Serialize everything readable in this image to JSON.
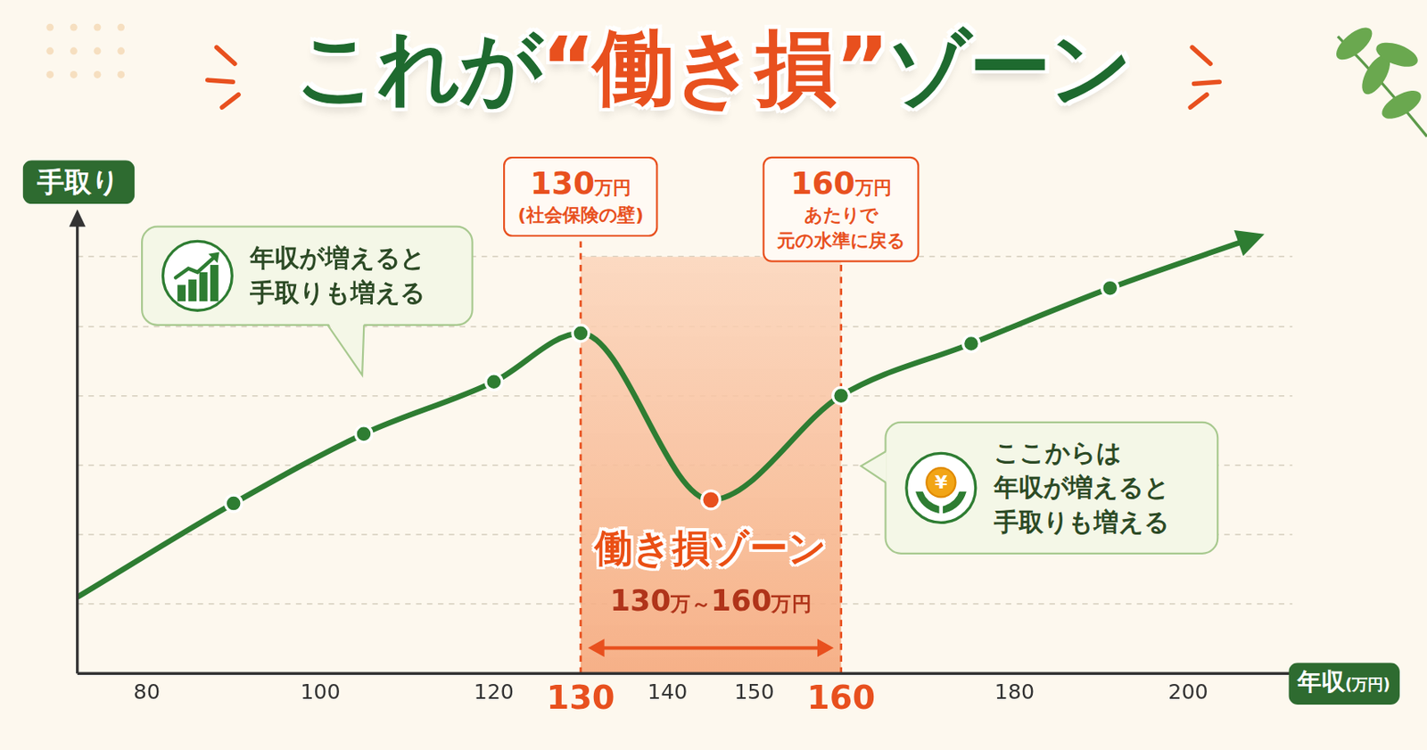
{
  "chart_data": {
    "type": "line",
    "title": "これが“働き損”ゾーン",
    "title_emphasis": "“働き損”",
    "ylabel": "手取り",
    "xlabel": "年収",
    "xunit": "(万円)",
    "x": [
      72,
      90,
      105,
      120,
      130,
      145,
      160,
      175,
      191,
      207
    ],
    "values": [
      11,
      24.5,
      34.5,
      42,
      49,
      25,
      40,
      47.5,
      55.5,
      62.5
    ],
    "color": "#2e7d32",
    "marker": "circle",
    "xlim": [
      72,
      212
    ],
    "xticks": [
      80,
      100,
      120,
      130,
      140,
      150,
      160,
      180,
      200
    ],
    "ylim": [
      0,
      65
    ],
    "yticks": [
      10,
      20,
      30,
      40,
      50,
      60
    ],
    "grid": "y",
    "tick_labels": "x",
    "zone": {
      "from": 130,
      "to": 160,
      "label": "働き損ゾーン",
      "range_label": "130万～160万円"
    },
    "annotations": [
      {
        "x": 130,
        "lines": [
          "130万円",
          "(社会保険の壁)"
        ]
      },
      {
        "x": 160,
        "lines": [
          "160万円",
          "あたりで",
          "元の水準に戻る"
        ]
      }
    ],
    "notes": [
      {
        "lines": [
          "年収が増えると",
          "手取りも増える"
        ]
      },
      {
        "icon": "¥",
        "lines": [
          "ここからは",
          "年収が増えると",
          "手取りも増える"
        ]
      }
    ]
  }
}
